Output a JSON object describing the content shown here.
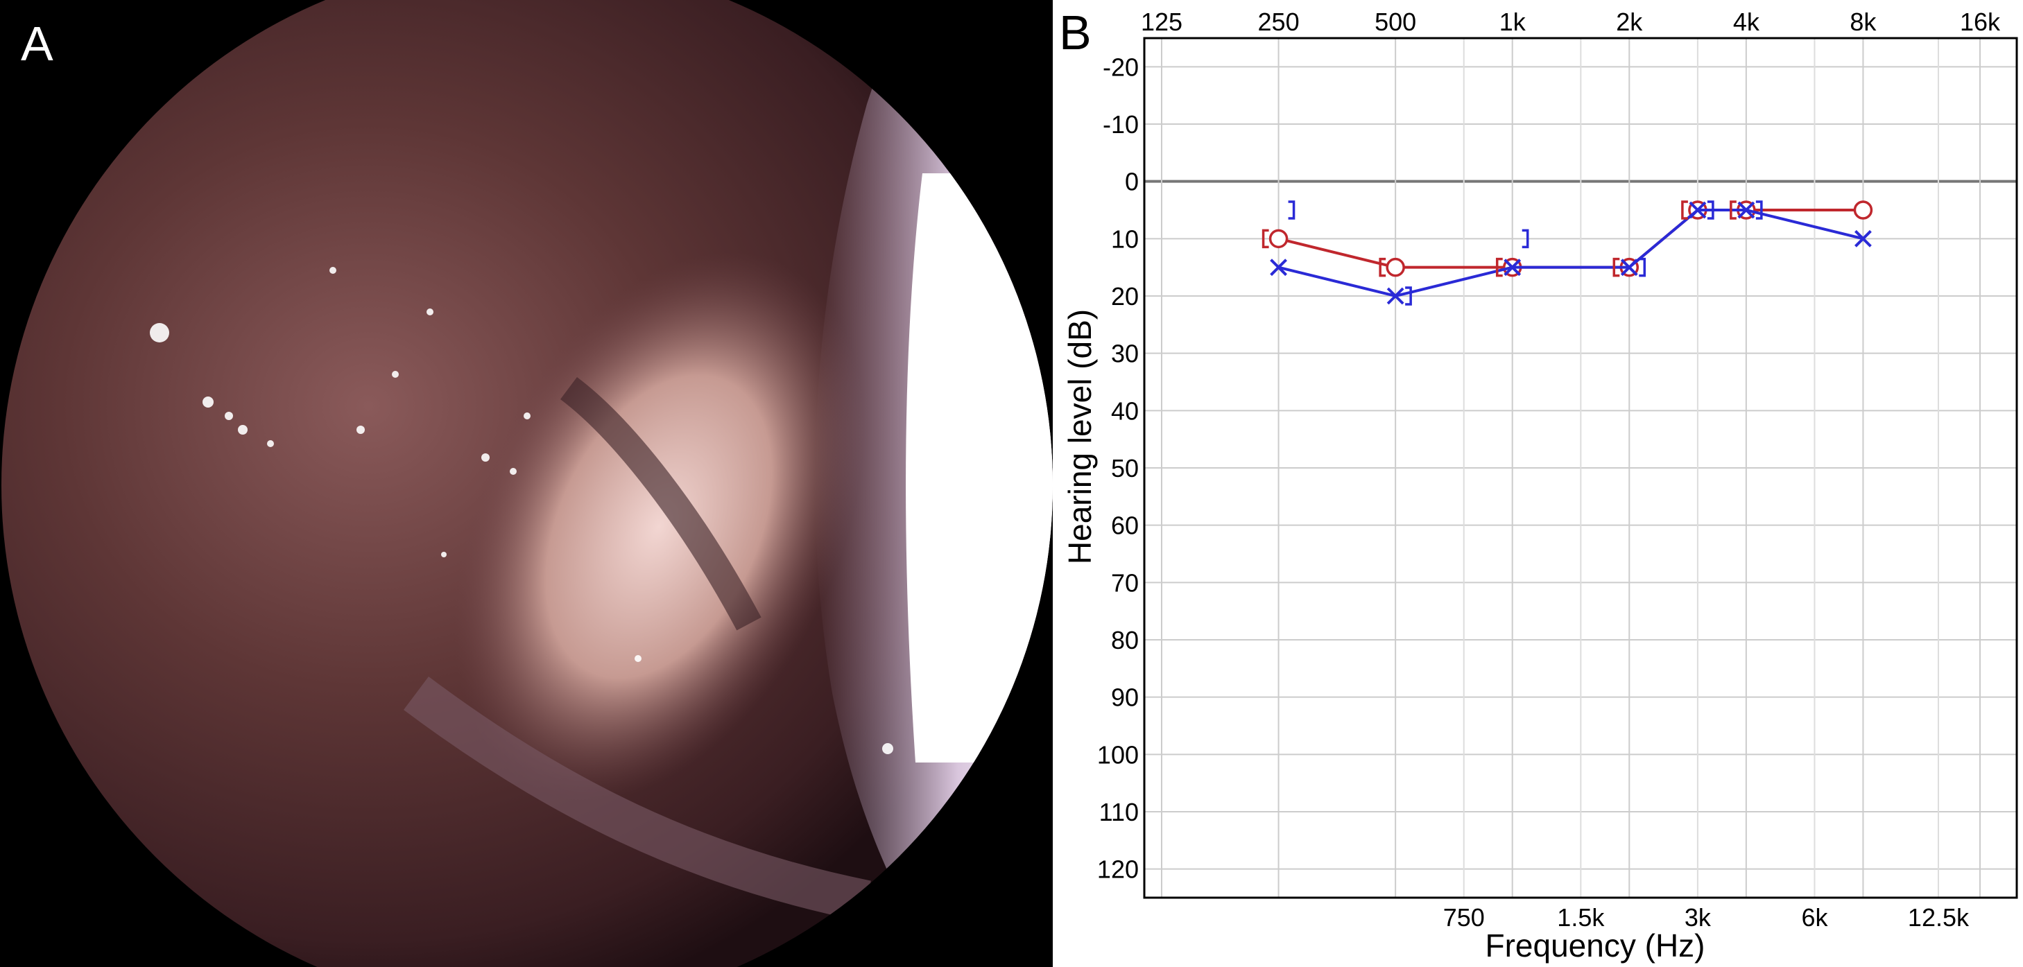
{
  "panels": {
    "a_label": "A",
    "b_label": "B"
  },
  "chart_data": {
    "type": "line",
    "title": "",
    "xlabel": "Frequency (Hz)",
    "ylabel": "Hearing level (dB)",
    "x_scale": "log2",
    "x_top_ticks": [
      {
        "hz": 125,
        "label": "125"
      },
      {
        "hz": 250,
        "label": "250"
      },
      {
        "hz": 500,
        "label": "500"
      },
      {
        "hz": 1000,
        "label": "1k"
      },
      {
        "hz": 2000,
        "label": "2k"
      },
      {
        "hz": 4000,
        "label": "4k"
      },
      {
        "hz": 8000,
        "label": "8k"
      },
      {
        "hz": 16000,
        "label": "16k"
      }
    ],
    "x_bottom_ticks": [
      {
        "hz": 750,
        "label": "750"
      },
      {
        "hz": 1500,
        "label": "1.5k"
      },
      {
        "hz": 3000,
        "label": "3k"
      },
      {
        "hz": 6000,
        "label": "6k"
      },
      {
        "hz": 12500,
        "label": "12.5k"
      }
    ],
    "y_ticks": [
      -20,
      -10,
      0,
      10,
      20,
      30,
      40,
      50,
      60,
      70,
      80,
      90,
      100,
      110,
      120
    ],
    "ylim": [
      -25,
      125
    ],
    "y_inverted": true,
    "grid": true,
    "series": [
      {
        "name": "",
        "marker": "circle",
        "color": "#c0272d",
        "x": [
          250,
          500,
          1000,
          2000,
          3000,
          4000,
          8000
        ],
        "y": [
          10,
          15,
          15,
          15,
          5,
          5,
          5
        ]
      },
      {
        "name": "",
        "marker": "x",
        "color": "#2a2ad6",
        "x": [
          250,
          500,
          1000,
          2000,
          3000,
          4000,
          8000
        ],
        "y": [
          15,
          20,
          15,
          15,
          5,
          5,
          10
        ]
      },
      {
        "name": "",
        "marker": "bracket-left",
        "color": "#c0272d",
        "connected": false,
        "x": [
          250,
          500,
          1000,
          2000,
          3000,
          4000
        ],
        "y": [
          10,
          15,
          15,
          15,
          5,
          5
        ]
      },
      {
        "name": "",
        "marker": "bracket-right",
        "color": "#2a2ad6",
        "connected": false,
        "x": [
          250,
          500,
          1000,
          2000,
          3000,
          4000
        ],
        "y": [
          5,
          20,
          10,
          15,
          5,
          5
        ]
      }
    ]
  }
}
